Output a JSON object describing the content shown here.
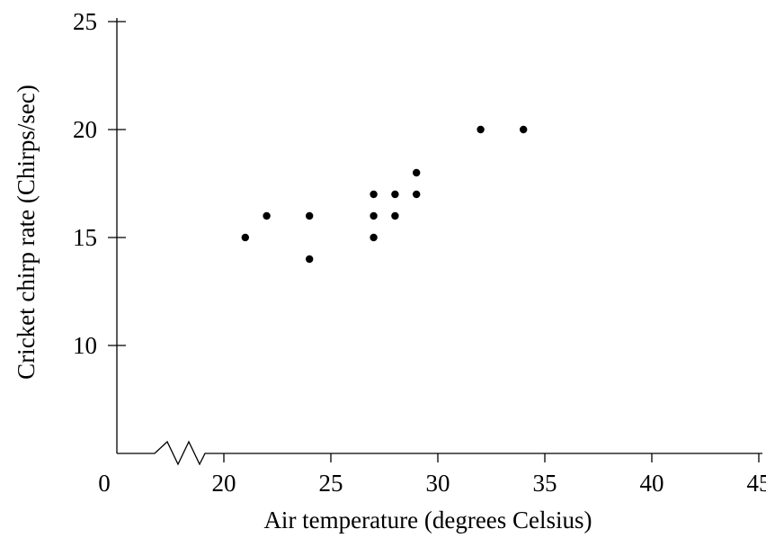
{
  "chart_data": {
    "type": "scatter",
    "title": "",
    "xlabel": "Air temperature (degrees Celsius)",
    "ylabel": "Cricket chirp rate (Chirps/sec)",
    "x_axis_break": true,
    "x_origin_label": "0",
    "xlim": [
      15,
      45
    ],
    "ylim": [
      5,
      25
    ],
    "x_ticks": [
      20,
      25,
      30,
      35,
      40,
      45
    ],
    "y_ticks": [
      10,
      15,
      20,
      25
    ],
    "grid": false,
    "legend": "none",
    "points": [
      {
        "x": 21,
        "y": 15
      },
      {
        "x": 22,
        "y": 16
      },
      {
        "x": 24,
        "y": 16
      },
      {
        "x": 24,
        "y": 14
      },
      {
        "x": 27,
        "y": 17
      },
      {
        "x": 27,
        "y": 16
      },
      {
        "x": 27,
        "y": 15
      },
      {
        "x": 28,
        "y": 17
      },
      {
        "x": 28,
        "y": 16
      },
      {
        "x": 29,
        "y": 18
      },
      {
        "x": 29,
        "y": 17
      },
      {
        "x": 32,
        "y": 20
      },
      {
        "x": 34,
        "y": 20
      }
    ],
    "point_color": "#000000"
  }
}
